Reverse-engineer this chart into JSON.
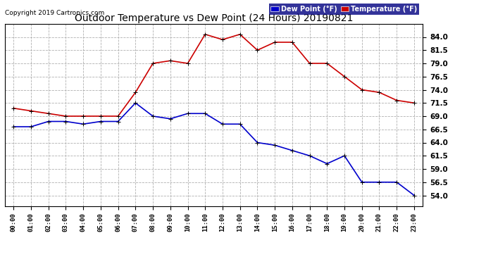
{
  "title": "Outdoor Temperature vs Dew Point (24 Hours) 20190821",
  "copyright": "Copyright 2019 Cartronics.com",
  "legend_dew_label": "Dew Point (°F)",
  "legend_temp_label": "Temperature (°F)",
  "dew_color": "#0000cc",
  "temp_color": "#cc0000",
  "legend_bg": "#000080",
  "x_labels": [
    "00:00",
    "01:00",
    "02:00",
    "03:00",
    "04:00",
    "05:00",
    "06:00",
    "07:00",
    "08:00",
    "09:00",
    "10:00",
    "11:00",
    "12:00",
    "13:00",
    "14:00",
    "15:00",
    "16:00",
    "17:00",
    "18:00",
    "19:00",
    "20:00",
    "21:00",
    "22:00",
    "23:00"
  ],
  "temperature": [
    70.5,
    70.0,
    69.5,
    69.0,
    69.0,
    69.0,
    69.0,
    73.5,
    79.0,
    79.5,
    79.0,
    84.5,
    83.5,
    84.5,
    81.5,
    83.0,
    83.0,
    79.0,
    79.0,
    76.5,
    74.0,
    73.5,
    72.0,
    71.5
  ],
  "dew_point": [
    67.0,
    67.0,
    68.0,
    68.0,
    67.5,
    68.0,
    68.0,
    71.5,
    69.0,
    68.5,
    69.5,
    69.5,
    67.5,
    67.5,
    64.0,
    63.5,
    62.5,
    61.5,
    60.0,
    61.5,
    56.5,
    56.5,
    56.5,
    54.0
  ],
  "ylim_min": 52.0,
  "ylim_max": 86.5,
  "yticks": [
    54.0,
    56.5,
    59.0,
    61.5,
    64.0,
    66.5,
    69.0,
    71.5,
    74.0,
    76.5,
    79.0,
    81.5,
    84.0
  ],
  "bg_color": "#ffffff",
  "grid_color": "#b0b0b0",
  "marker": "+",
  "markersize": 5,
  "linewidth": 1.2
}
